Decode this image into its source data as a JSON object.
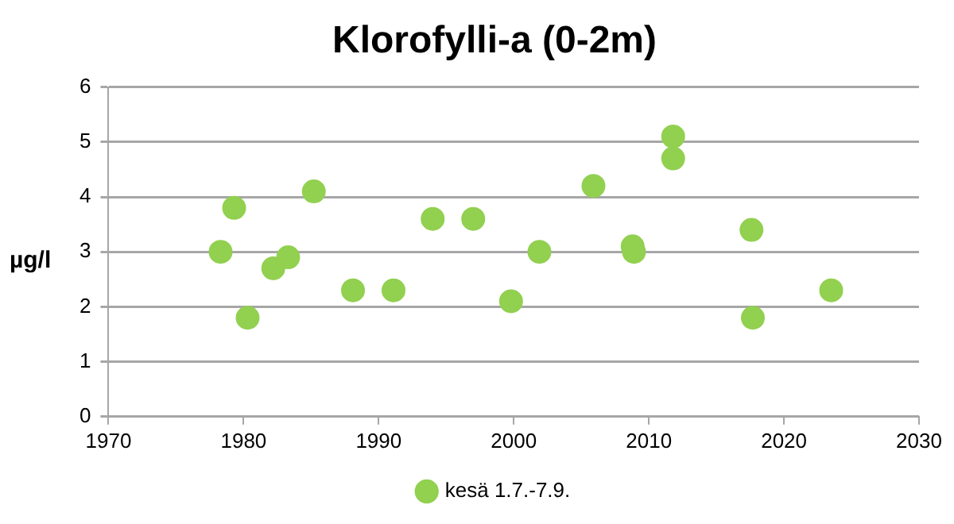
{
  "chart_data": {
    "type": "scatter",
    "title": "Klorofylli-a (0-2m)",
    "ylabel": "µg/l",
    "x": [
      1978.3,
      1979.3,
      1980.3,
      1982.2,
      1983.3,
      1985.2,
      1988.1,
      1991.1,
      1994.0,
      1997.0,
      1999.8,
      2001.9,
      2005.9,
      2008.8,
      2008.9,
      2011.8,
      2011.8,
      2017.6,
      2017.7,
      2023.5
    ],
    "series": [
      {
        "name": "kesä 1.7.-7.9.",
        "color": "#92d050",
        "values": [
          3.0,
          3.8,
          1.8,
          2.7,
          2.9,
          4.1,
          2.3,
          2.3,
          3.6,
          3.6,
          2.1,
          3.0,
          4.2,
          3.1,
          3.0,
          5.1,
          4.7,
          3.4,
          1.8,
          2.3
        ]
      }
    ],
    "xlim": [
      1970,
      2030
    ],
    "xticks": [
      1970,
      1980,
      1990,
      2000,
      2010,
      2020,
      2030
    ],
    "ylim": [
      0,
      6
    ],
    "yticks": [
      0,
      1,
      2,
      3,
      4,
      5,
      6
    ],
    "grid": "y",
    "legend": "bottom",
    "marker": "circle"
  }
}
